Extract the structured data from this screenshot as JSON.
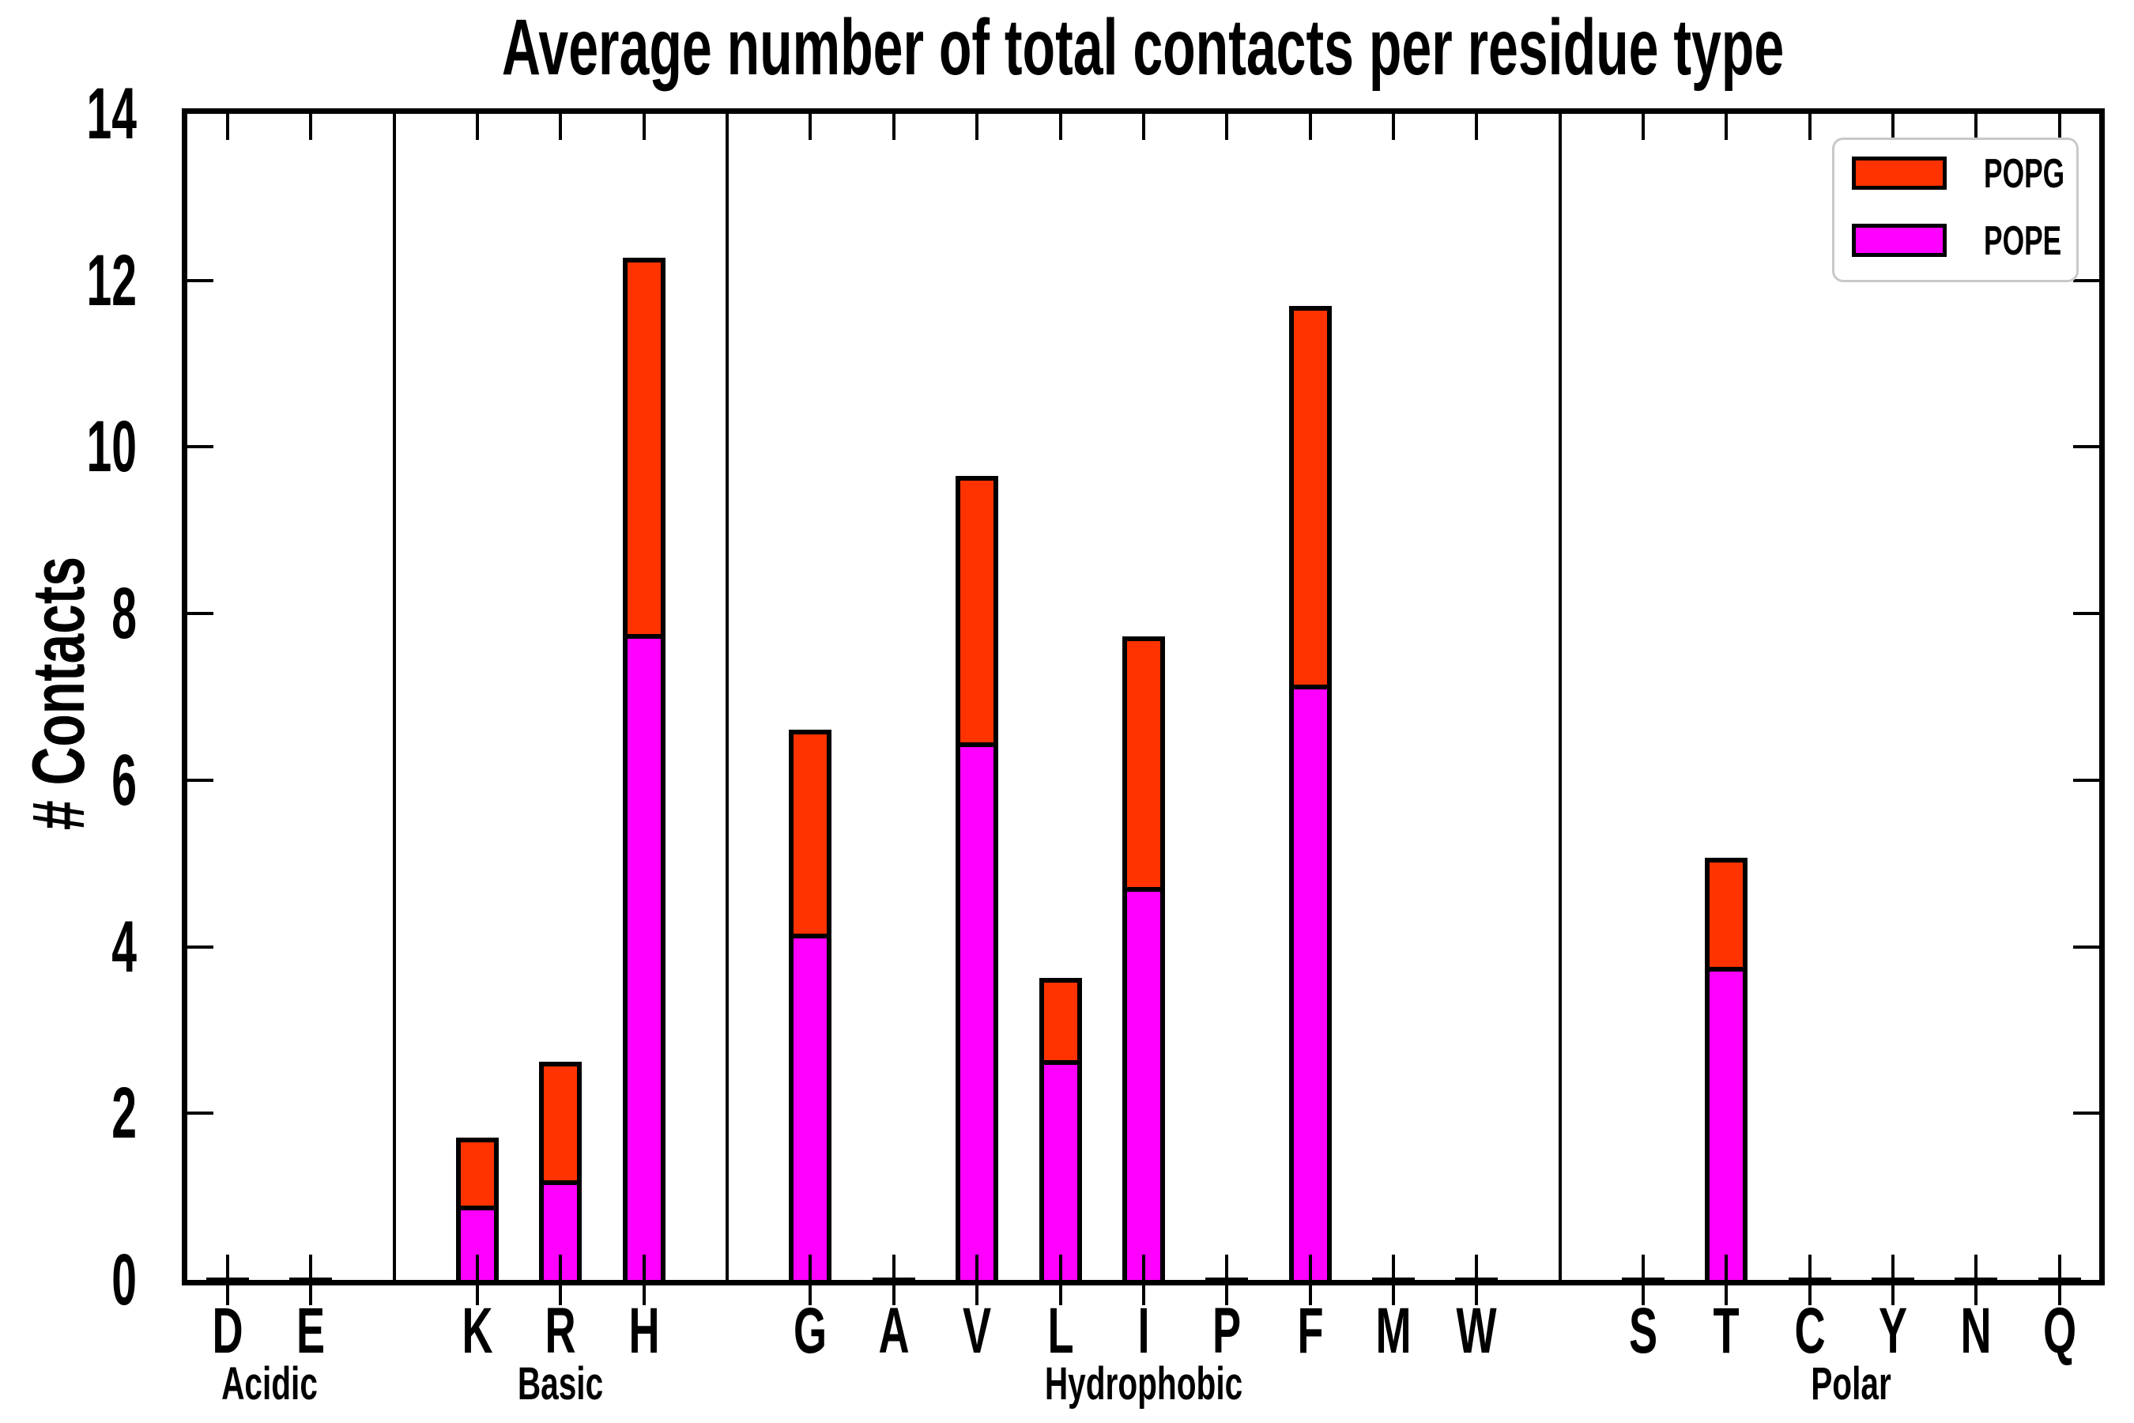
{
  "title": "Average number of total contacts per residue type",
  "y_axis": {
    "label": "# Contacts",
    "ticks": [
      0,
      2,
      4,
      6,
      8,
      10,
      12,
      14
    ],
    "max": 14
  },
  "legend": {
    "entries": [
      {
        "label": "POPG",
        "color": "#ff3300"
      },
      {
        "label": "POPE",
        "color": "#ff00ff"
      }
    ]
  },
  "colors": {
    "popg": "#ff3300",
    "pope": "#ff00ff",
    "edge": "#000000",
    "background": "#ffffff",
    "legend_border": "#c9c9c9"
  },
  "chart_data": {
    "type": "bar",
    "stacked": true,
    "title": "Average number of total contacts per residue type",
    "xlabel": "",
    "ylabel": "# Contacts",
    "ylim": [
      0,
      14
    ],
    "grid": false,
    "legend_position": "upper right",
    "categories": [
      "D",
      "E",
      "K",
      "R",
      "H",
      "G",
      "A",
      "V",
      "L",
      "I",
      "P",
      "F",
      "M",
      "W",
      "S",
      "T",
      "C",
      "Y",
      "N",
      "Q"
    ],
    "series": [
      {
        "name": "POPE",
        "color": "#ff00ff",
        "values": [
          0,
          0,
          0.89,
          1.2,
          7.75,
          4.16,
          0,
          6.45,
          2.64,
          4.72,
          0,
          7.15,
          0,
          0,
          0,
          3.76,
          0,
          0,
          0,
          0
        ]
      },
      {
        "name": "POPG",
        "color": "#ff3300",
        "values": [
          0,
          0,
          0.82,
          1.42,
          4.52,
          2.45,
          0,
          3.2,
          0.99,
          3.01,
          0,
          4.54,
          0,
          0,
          0,
          1.31,
          0,
          0,
          0,
          0
        ]
      }
    ],
    "totals": [
      0,
      0,
      1.71,
      2.62,
      12.27,
      6.61,
      0,
      9.65,
      3.63,
      7.73,
      0,
      11.69,
      0,
      0,
      0,
      5.07,
      0,
      0,
      0,
      0
    ],
    "groups": [
      {
        "name": "Acidic",
        "residues": [
          "D",
          "E"
        ]
      },
      {
        "name": "Basic",
        "residues": [
          "K",
          "R",
          "H"
        ]
      },
      {
        "name": "Hydrophobic",
        "residues": [
          "G",
          "A",
          "V",
          "L",
          "I",
          "P",
          "F",
          "M",
          "W"
        ]
      },
      {
        "name": "Polar",
        "residues": [
          "S",
          "T",
          "C",
          "Y",
          "N",
          "Q"
        ]
      }
    ]
  }
}
